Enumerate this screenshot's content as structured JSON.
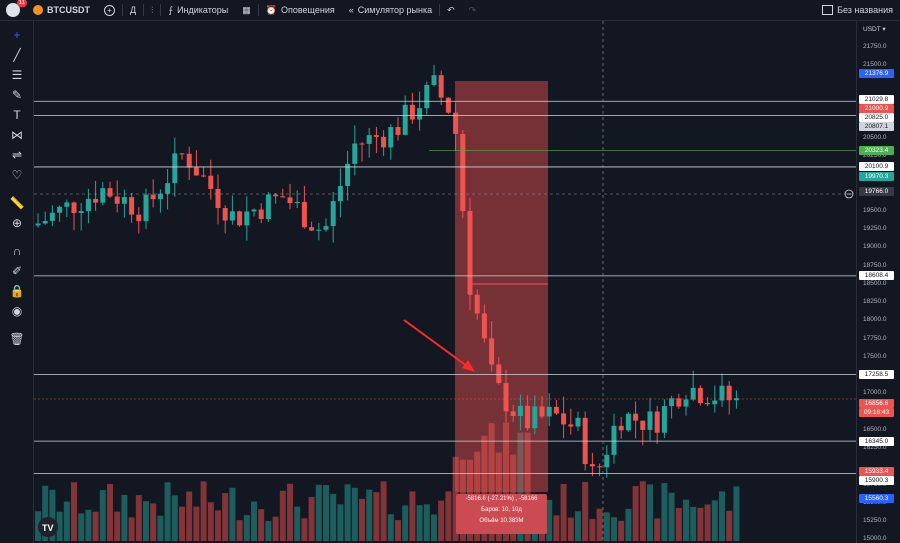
{
  "toolbar": {
    "notification_count": "11",
    "symbol": "BTCUSDT",
    "interval": "Д",
    "indicators_label": "Индикаторы",
    "alerts_label": "Оповещения",
    "replay_label": "Симулятор рынка",
    "layout_name": "Без названия"
  },
  "price_axis": {
    "currency": "USDT",
    "ticks": [
      "21750.0",
      "21500.0",
      "21000.0",
      "20500.0",
      "20250.0",
      "19500.0",
      "19250.0",
      "19000.0",
      "18750.0",
      "18500.0",
      "18250.0",
      "18000.0",
      "17750.0",
      "17500.0",
      "17000.0",
      "16500.0",
      "16250.0",
      "15750.0",
      "15500.0",
      "15250.0",
      "15000.0"
    ],
    "labels": [
      {
        "text": "21376.9",
        "kind": "blue"
      },
      {
        "text": "21029.8",
        "kind": "white"
      },
      {
        "text": "21000.9",
        "kind": "red"
      },
      {
        "text": "20825.0",
        "kind": "white"
      },
      {
        "text": "20807.1",
        "kind": "grey"
      },
      {
        "text": "20323.4",
        "kind": "green"
      },
      {
        "text": "20100.9",
        "kind": "white"
      },
      {
        "text": "19970.3",
        "kind": "teal"
      },
      {
        "text": "19766.0",
        "kind": "dark"
      },
      {
        "text": "18608.4",
        "kind": "white"
      },
      {
        "text": "17258.5",
        "kind": "white"
      },
      {
        "text": "16856.6",
        "kind": "red"
      },
      {
        "text": "09:18:43",
        "kind": "red"
      },
      {
        "text": "16345.0",
        "kind": "white"
      },
      {
        "text": "15933.4",
        "kind": "red"
      },
      {
        "text": "15900.3",
        "kind": "white"
      },
      {
        "text": "15560.3",
        "kind": "blue"
      }
    ]
  },
  "measure_tooltip": {
    "line1": "-5816.6 (-27.21%) , -58166",
    "line2": "Баров: 10, 10д",
    "line3": "Объём 10.383M"
  },
  "chart_data": {
    "type": "candlestick",
    "symbol": "BTCUSDT",
    "interval": "1D",
    "y_range": [
      14950,
      22100
    ],
    "last_price": 16856.6,
    "horizontal_levels": [
      21000.9,
      20807.1,
      20100.9,
      18608.4,
      17258.5,
      16345.0,
      15900.3
    ],
    "measured_move": {
      "change": -5816.6,
      "percent": -27.21,
      "bars": 10
    },
    "colors": {
      "up": "#26a69a",
      "down": "#ef5350",
      "background": "#131722"
    }
  },
  "colors": {
    "accent": "#2962ff",
    "up": "#26a69a",
    "down": "#ef5350"
  }
}
